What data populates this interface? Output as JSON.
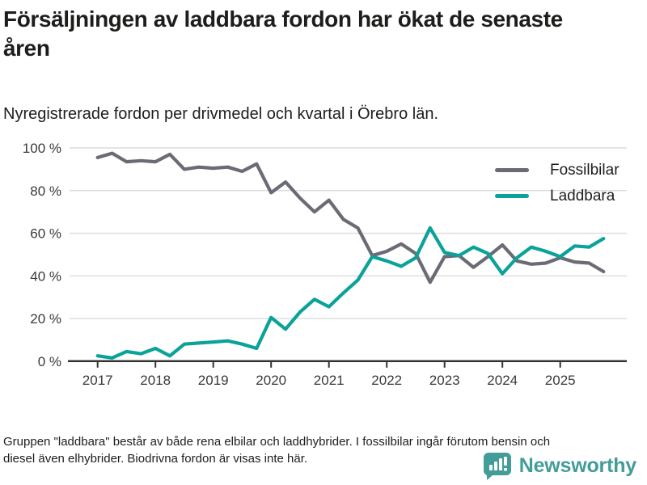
{
  "header": {
    "title": "Försäljningen av laddbara fordon har ökat de senaste åren",
    "subtitle": "Nyregistrerade fordon per drivmedel och kvartal i Örebro län."
  },
  "chart_data": {
    "type": "line",
    "title": "Försäljningen av laddbara fordon har ökat de senaste åren",
    "subtitle": "Nyregistrerade fordon per drivmedel och kvartal i Örebro län.",
    "x_unit": "quarter",
    "categories": [
      "2017 Q1",
      "2017 Q2",
      "2017 Q3",
      "2017 Q4",
      "2018 Q1",
      "2018 Q2",
      "2018 Q3",
      "2018 Q4",
      "2019 Q1",
      "2019 Q2",
      "2019 Q3",
      "2019 Q4",
      "2020 Q1",
      "2020 Q2",
      "2020 Q3",
      "2020 Q4",
      "2021 Q1",
      "2021 Q2",
      "2021 Q3",
      "2021 Q4",
      "2022 Q1",
      "2022 Q2",
      "2022 Q3",
      "2022 Q4",
      "2023 Q1",
      "2023 Q2",
      "2023 Q3",
      "2023 Q4",
      "2024 Q1",
      "2024 Q2",
      "2024 Q3",
      "2024 Q4",
      "2025 Q1",
      "2025 Q2",
      "2025 Q3",
      "2025 Q4"
    ],
    "series": [
      {
        "name": "Fossilbilar",
        "color": "#6b6b76",
        "values": [
          95.5,
          97.5,
          93.5,
          94,
          93.5,
          97,
          90,
          91,
          90.5,
          91,
          89,
          92.5,
          79,
          84,
          76.5,
          70,
          75.5,
          66.5,
          62.5,
          49.5,
          51.5,
          55,
          50.5,
          37,
          49,
          49.5,
          44,
          49,
          54.5,
          47,
          45.5,
          46,
          48.5,
          46.5,
          46,
          42
        ]
      },
      {
        "name": "Laddbara",
        "color": "#0ba29a",
        "values": [
          2.5,
          1.5,
          4.5,
          3.5,
          6,
          2.5,
          8,
          8.5,
          9,
          9.5,
          8,
          6,
          20.5,
          15,
          23,
          29,
          25.5,
          32,
          38,
          49,
          47,
          44.5,
          48.5,
          62.5,
          51,
          49.5,
          53.5,
          50.5,
          41,
          48.5,
          53.5,
          51.5,
          49,
          54,
          53.5,
          57.5
        ]
      }
    ],
    "ylim": [
      0,
      100
    ],
    "y_ticks": [
      {
        "value": 100,
        "label": "100 %"
      },
      {
        "value": 80,
        "label": "80 %"
      },
      {
        "value": 60,
        "label": "60 %"
      },
      {
        "value": 40,
        "label": "40 %"
      },
      {
        "value": 20,
        "label": "20 %"
      },
      {
        "value": 0,
        "label": "0 %"
      }
    ],
    "x_ticks": [
      "2017",
      "2018",
      "2019",
      "2020",
      "2021",
      "2022",
      "2023",
      "2024",
      "2025"
    ],
    "grid": "horizontal",
    "legend_position": "top-right"
  },
  "footer": {
    "note": "Gruppen \"laddbara\" består av både rena elbilar och laddhybrider. I fossilbilar ingår förutom bensin och diesel även elhybrider. Biodrivna fordon är visas inte här."
  },
  "branding": {
    "logo_text": "Newsworthy",
    "logo_color": "#429d99",
    "icon": "newsworthy-bar-chart-bubble-icon"
  },
  "colors": {
    "fossil_line": "#6b6b76",
    "laddbara_line": "#0ba29a",
    "gridline": "#dcdcdc",
    "axis": "#333333",
    "tick_label": "#3a3a3a"
  }
}
